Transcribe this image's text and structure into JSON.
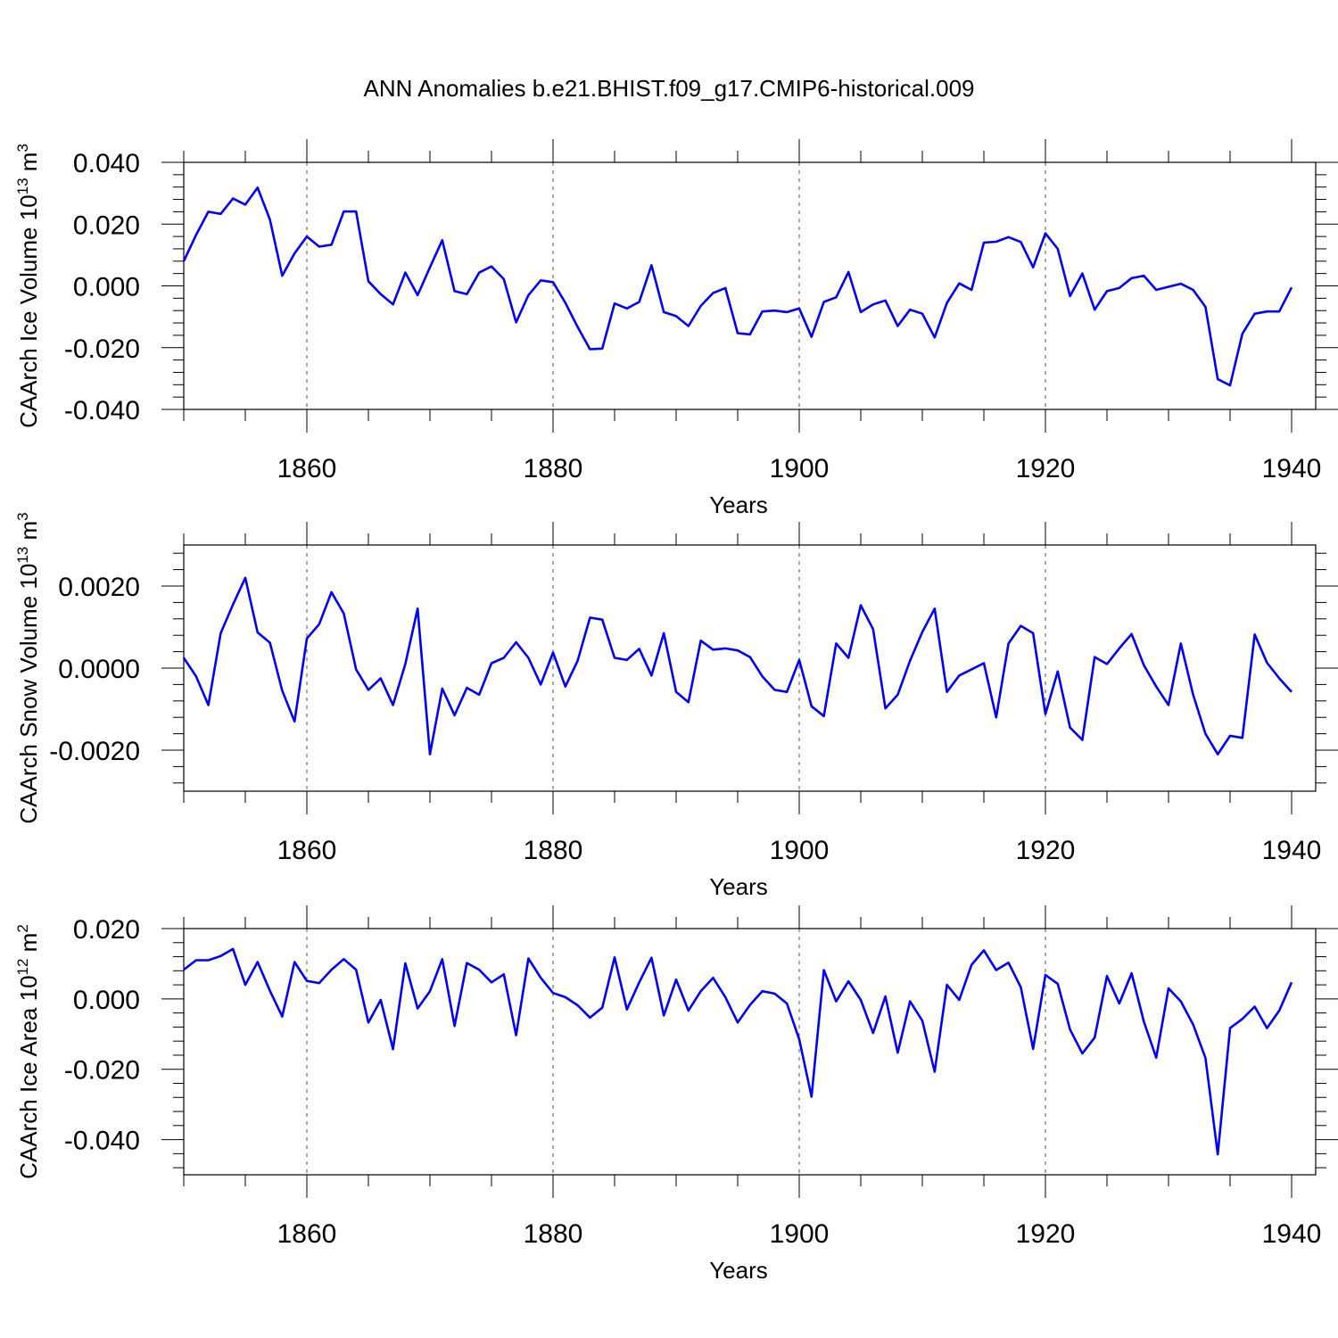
{
  "chart_data": {
    "title": "ANN Anomalies b.e21.BHIST.f09_g17.CMIP6-historical.009",
    "line_color": "#0000ff",
    "x": [
      1850,
      1851,
      1852,
      1853,
      1854,
      1855,
      1856,
      1857,
      1858,
      1859,
      1860,
      1861,
      1862,
      1863,
      1864,
      1865,
      1866,
      1867,
      1868,
      1869,
      1870,
      1871,
      1872,
      1873,
      1874,
      1875,
      1876,
      1877,
      1878,
      1879,
      1880,
      1881,
      1882,
      1883,
      1884,
      1885,
      1886,
      1887,
      1888,
      1889,
      1890,
      1891,
      1892,
      1893,
      1894,
      1895,
      1896,
      1897,
      1898,
      1899,
      1900,
      1901,
      1902,
      1903,
      1904,
      1905,
      1906,
      1907,
      1908,
      1909,
      1910,
      1911,
      1912,
      1913,
      1914,
      1915,
      1916,
      1917,
      1918,
      1919,
      1920,
      1921,
      1922,
      1923,
      1924,
      1925,
      1926,
      1927,
      1928,
      1929,
      1930,
      1931,
      1932,
      1933,
      1934,
      1935,
      1936,
      1937,
      1938,
      1939,
      1940
    ],
    "panels": [
      {
        "type": "line",
        "ylabel": "CAArch Ice Volume 10",
        "ylabel_exp": "13",
        "ylabel_unit": " m",
        "ylabel_unit_exp": "3",
        "xlabel": "Years",
        "xlim": [
          1850,
          1940
        ],
        "ylim": [
          -0.04,
          0.04
        ],
        "yticks": [
          -0.04,
          -0.02,
          0.0,
          0.02,
          0.04
        ],
        "ytick_labels": [
          "-0.040",
          "-0.020",
          "0.000",
          "0.020",
          "0.040"
        ],
        "xticks": [
          1860,
          1880,
          1900,
          1920,
          1940
        ],
        "xtick_labels": [
          "1860",
          "1880",
          "1900",
          "1920",
          "1940"
        ],
        "values": [
          0.008,
          0.0165,
          0.024,
          0.0233,
          0.0283,
          0.0263,
          0.0318,
          0.0215,
          0.0033,
          0.0105,
          0.016,
          0.0127,
          0.0133,
          0.0241,
          0.0241,
          0.0015,
          -0.0027,
          -0.006,
          0.0043,
          -0.003,
          0.006,
          0.0148,
          -0.0017,
          -0.0027,
          0.0043,
          0.0063,
          0.0022,
          -0.0118,
          -0.003,
          0.0018,
          0.0012,
          -0.0055,
          -0.0133,
          -0.0205,
          -0.0203,
          -0.0057,
          -0.0073,
          -0.0052,
          0.0067,
          -0.0085,
          -0.0098,
          -0.013,
          -0.0065,
          -0.0023,
          -0.0007,
          -0.0153,
          -0.0157,
          -0.0083,
          -0.008,
          -0.0085,
          -0.0073,
          -0.0165,
          -0.0052,
          -0.0037,
          0.0045,
          -0.0085,
          -0.006,
          -0.0047,
          -0.013,
          -0.0077,
          -0.009,
          -0.0167,
          -0.0055,
          0.0008,
          -0.0013,
          0.014,
          0.0143,
          0.0158,
          0.0142,
          0.006,
          0.017,
          0.012,
          -0.0033,
          0.004,
          -0.0077,
          -0.0017,
          -0.0007,
          0.0025,
          0.0033,
          -0.0013,
          -0.0003,
          0.0007,
          -0.0013,
          -0.0068,
          -0.0302,
          -0.0322,
          -0.0155,
          -0.009,
          -0.0083,
          -0.0083,
          -0.0005
        ]
      },
      {
        "type": "line",
        "ylabel": "CAArch Snow Volume 10",
        "ylabel_exp": "13",
        "ylabel_unit": " m",
        "ylabel_unit_exp": "3",
        "xlabel": "Years",
        "xlim": [
          1850,
          1940
        ],
        "ylim": [
          -0.003,
          0.003
        ],
        "yticks": [
          -0.002,
          0.0,
          0.002
        ],
        "ytick_labels": [
          "-0.0020",
          "0.0000",
          "0.0020"
        ],
        "xticks": [
          1860,
          1880,
          1900,
          1920,
          1940
        ],
        "xtick_labels": [
          "1860",
          "1880",
          "1900",
          "1920",
          "1940"
        ],
        "values": [
          0.00025,
          -0.0002,
          -0.0009,
          0.00085,
          0.00155,
          0.0022,
          0.00087,
          0.00062,
          -0.00055,
          -0.0013,
          0.00072,
          0.00107,
          0.00185,
          0.00133,
          -3e-05,
          -0.00053,
          -0.00025,
          -0.0009,
          0.0001,
          0.00145,
          -0.0021,
          -0.0005,
          -0.00115,
          -0.00048,
          -0.00065,
          0.00012,
          0.00025,
          0.00063,
          0.00025,
          -0.0004,
          0.00038,
          -0.00045,
          0.00018,
          0.00123,
          0.00118,
          0.00025,
          0.0002,
          0.00047,
          -0.00018,
          0.00085,
          -0.00058,
          -0.00083,
          0.00067,
          0.00045,
          0.00048,
          0.00043,
          0.00027,
          -0.0002,
          -0.00053,
          -0.00058,
          0.0002,
          -0.00093,
          -0.00117,
          0.0006,
          0.00025,
          0.00153,
          0.00095,
          -0.00098,
          -0.00065,
          0.00018,
          0.00088,
          0.00145,
          -0.00058,
          -0.00018,
          -3e-05,
          0.00012,
          -0.0012,
          0.0006,
          0.00103,
          0.00085,
          -0.00112,
          -8e-05,
          -0.00145,
          -0.00175,
          0.00027,
          0.0001,
          0.00048,
          0.00083,
          7e-05,
          -0.00045,
          -0.0009,
          0.0006,
          -0.00065,
          -0.0016,
          -0.0021,
          -0.00165,
          -0.0017,
          0.00082,
          0.00013,
          -0.00025,
          -0.00058
        ]
      },
      {
        "type": "line",
        "ylabel": "CAArch Ice Area 10",
        "ylabel_exp": "12",
        "ylabel_unit": " m",
        "ylabel_unit_exp": "2",
        "xlabel": "Years",
        "xlim": [
          1850,
          1940
        ],
        "ylim": [
          -0.05,
          0.02
        ],
        "yticks": [
          -0.04,
          -0.02,
          0.0,
          0.02
        ],
        "ytick_labels": [
          "-0.040",
          "-0.020",
          "0.000",
          "0.020"
        ],
        "xticks": [
          1860,
          1880,
          1900,
          1920,
          1940
        ],
        "xtick_labels": [
          "1860",
          "1880",
          "1900",
          "1920",
          "1940"
        ],
        "values": [
          0.0083,
          0.011,
          0.011,
          0.0122,
          0.0142,
          0.004,
          0.0105,
          0.0023,
          -0.005,
          0.0105,
          0.0051,
          0.0045,
          0.0083,
          0.0113,
          0.0083,
          -0.0067,
          -0.0003,
          -0.0143,
          0.0101,
          -0.0027,
          0.0022,
          0.0113,
          -0.0077,
          0.0102,
          0.0083,
          0.0047,
          0.007,
          -0.0103,
          0.0115,
          0.006,
          0.0017,
          0.0005,
          -0.0018,
          -0.0053,
          -0.0025,
          0.0118,
          -0.003,
          0.0047,
          0.0117,
          -0.0047,
          0.0055,
          -0.0033,
          0.0022,
          0.006,
          0.0005,
          -0.0067,
          -0.0017,
          0.0022,
          0.0015,
          -0.0013,
          -0.0115,
          -0.0278,
          0.0082,
          -0.0007,
          0.005,
          -0.0003,
          -0.0097,
          0.0007,
          -0.0153,
          -0.0007,
          -0.0062,
          -0.0207,
          0.004,
          -0.0003,
          0.0097,
          0.0138,
          0.0082,
          0.0103,
          0.0033,
          -0.0142,
          0.0068,
          0.0043,
          -0.0087,
          -0.0155,
          -0.011,
          0.0065,
          -0.0013,
          0.0073,
          -0.0065,
          -0.0167,
          0.003,
          -0.0007,
          -0.0073,
          -0.0168,
          -0.0442,
          -0.0083,
          -0.0057,
          -0.0022,
          -0.0083,
          -0.0033,
          0.0047
        ]
      }
    ]
  }
}
